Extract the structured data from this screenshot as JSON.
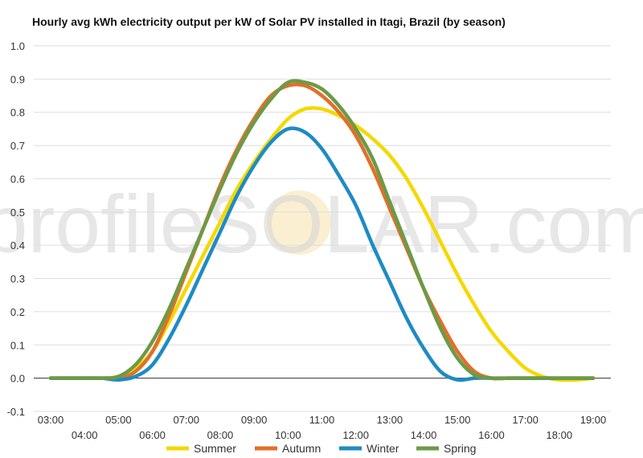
{
  "chart_data": {
    "type": "line",
    "title": "Hourly avg kWh electricity output per kW of Solar PV installed in Itagi, Brazil (by season)",
    "xlabel": "",
    "ylabel": "",
    "watermark": "profileSOLAR.com",
    "x": [
      "03:00",
      "03:30",
      "04:00",
      "04:30",
      "05:00",
      "05:30",
      "06:00",
      "06:30",
      "07:00",
      "07:30",
      "08:00",
      "08:30",
      "09:00",
      "09:30",
      "10:00",
      "10:30",
      "11:00",
      "11:30",
      "12:00",
      "12:30",
      "13:00",
      "13:30",
      "14:00",
      "14:30",
      "15:00",
      "15:30",
      "16:00",
      "16:30",
      "17:00",
      "17:30",
      "18:00",
      "18:30",
      "19:00"
    ],
    "x_tick_labels": [
      "03:00",
      "04:00",
      "05:00",
      "06:00",
      "07:00",
      "08:00",
      "09:00",
      "10:00",
      "11:00",
      "12:00",
      "13:00",
      "14:00",
      "15:00",
      "16:00",
      "17:00",
      "18:00",
      "19:00"
    ],
    "y_tick_labels": [
      "-0.1",
      "0.0",
      "0.1",
      "0.2",
      "0.3",
      "0.4",
      "0.5",
      "0.6",
      "0.7",
      "0.8",
      "0.9",
      "1.0"
    ],
    "ylim": [
      -0.1,
      1.0
    ],
    "grid": true,
    "legend_position": "bottom",
    "series": [
      {
        "name": "Summer",
        "color": "#f5d800",
        "values": [
          0,
          0,
          0,
          0,
          0.005,
          0.03,
          0.08,
          0.17,
          0.27,
          0.37,
          0.47,
          0.57,
          0.65,
          0.72,
          0.78,
          0.81,
          0.81,
          0.79,
          0.76,
          0.72,
          0.67,
          0.6,
          0.51,
          0.41,
          0.31,
          0.22,
          0.14,
          0.08,
          0.03,
          0.005,
          -0.005,
          -0.005,
          0
        ]
      },
      {
        "name": "Autumn",
        "color": "#e0702a",
        "values": [
          0,
          0,
          0,
          0,
          0,
          0.02,
          0.08,
          0.19,
          0.32,
          0.45,
          0.58,
          0.69,
          0.78,
          0.85,
          0.88,
          0.88,
          0.85,
          0.8,
          0.73,
          0.63,
          0.51,
          0.39,
          0.27,
          0.17,
          0.08,
          0.02,
          0,
          0,
          0,
          0,
          0,
          0,
          0
        ]
      },
      {
        "name": "Winter",
        "color": "#1e8bc3",
        "values": [
          0,
          0,
          0,
          0,
          -0.005,
          0.005,
          0.04,
          0.12,
          0.22,
          0.33,
          0.44,
          0.55,
          0.64,
          0.71,
          0.75,
          0.74,
          0.69,
          0.61,
          0.52,
          0.4,
          0.29,
          0.18,
          0.09,
          0.02,
          -0.005,
          0,
          0,
          0,
          0,
          0,
          0,
          0,
          0
        ]
      },
      {
        "name": "Spring",
        "color": "#6c9a46",
        "values": [
          0,
          0,
          0,
          0,
          0.005,
          0.04,
          0.11,
          0.21,
          0.33,
          0.45,
          0.57,
          0.68,
          0.77,
          0.84,
          0.89,
          0.89,
          0.87,
          0.82,
          0.75,
          0.66,
          0.53,
          0.4,
          0.27,
          0.15,
          0.06,
          0.01,
          0,
          0,
          0,
          0,
          0,
          0,
          0
        ]
      }
    ]
  }
}
